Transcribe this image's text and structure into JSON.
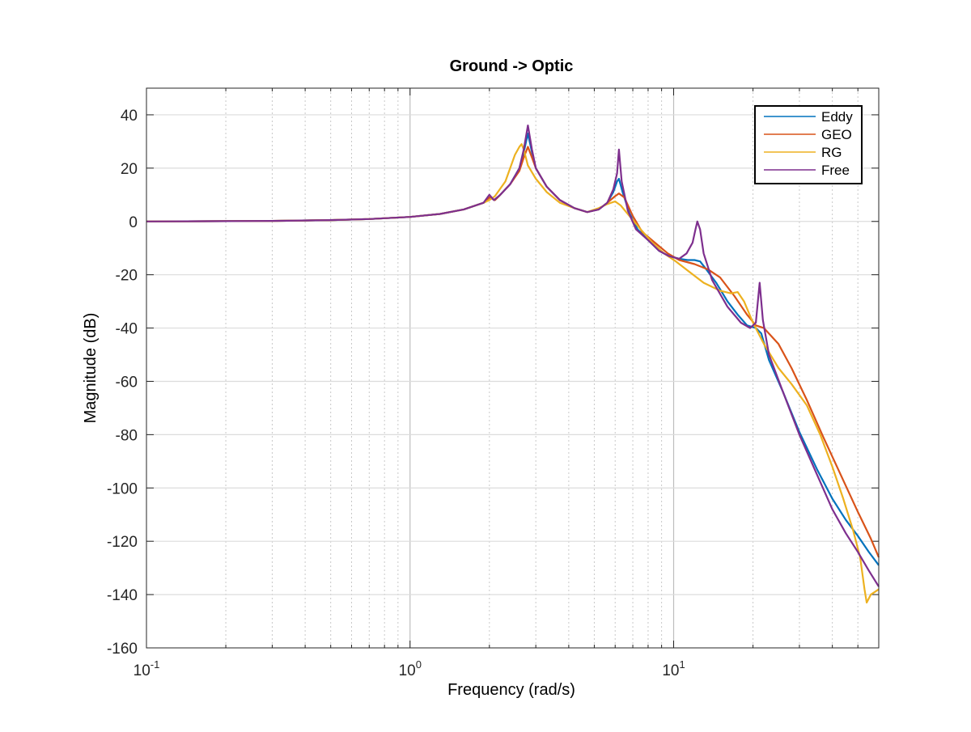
{
  "chart_data": {
    "type": "line",
    "title": "Ground -> Optic",
    "xlabel": "Frequency  (rad/s)",
    "ylabel": "Magnitude (dB)",
    "xscale": "log",
    "xlim": [
      0.1,
      60
    ],
    "ylim": [
      -160,
      50
    ],
    "grid": true,
    "legend_position": "top-right",
    "xticks": [
      {
        "value": 0.1,
        "base": "10",
        "exp": "-1"
      },
      {
        "value": 1,
        "base": "10",
        "exp": "0"
      },
      {
        "value": 10,
        "base": "10",
        "exp": "1"
      }
    ],
    "yticks": [
      40,
      20,
      0,
      -20,
      -40,
      -60,
      -80,
      -100,
      -120,
      -140,
      -160
    ],
    "yticklabels": [
      "40",
      "20",
      "0",
      "-20",
      "-40",
      "-60",
      "-80",
      "-100",
      "-120",
      "-140",
      "-160"
    ],
    "series": [
      {
        "name": "Eddy",
        "color": "#0072BD",
        "points": [
          [
            0.1,
            0
          ],
          [
            0.3,
            0.2
          ],
          [
            0.5,
            0.5
          ],
          [
            0.7,
            0.9
          ],
          [
            1.0,
            1.7
          ],
          [
            1.3,
            2.8
          ],
          [
            1.6,
            4.5
          ],
          [
            1.9,
            7
          ],
          [
            2.0,
            9
          ],
          [
            2.1,
            8
          ],
          [
            2.2,
            10
          ],
          [
            2.4,
            14
          ],
          [
            2.6,
            20
          ],
          [
            2.7,
            26
          ],
          [
            2.8,
            33
          ],
          [
            2.9,
            26
          ],
          [
            3.0,
            20
          ],
          [
            3.3,
            13
          ],
          [
            3.7,
            8
          ],
          [
            4.2,
            5
          ],
          [
            4.7,
            3.5
          ],
          [
            5.2,
            4.5
          ],
          [
            5.6,
            7
          ],
          [
            5.9,
            11
          ],
          [
            6.1,
            15
          ],
          [
            6.2,
            16
          ],
          [
            6.4,
            11
          ],
          [
            6.8,
            3
          ],
          [
            7.3,
            -3
          ],
          [
            8.0,
            -7
          ],
          [
            8.8,
            -11
          ],
          [
            9.6,
            -13
          ],
          [
            10.5,
            -14
          ],
          [
            11.3,
            -14.5
          ],
          [
            12.0,
            -14.5
          ],
          [
            12.6,
            -15
          ],
          [
            13.3,
            -18
          ],
          [
            14.5,
            -23
          ],
          [
            16,
            -30
          ],
          [
            17.5,
            -35
          ],
          [
            19,
            -39
          ],
          [
            20.5,
            -40
          ],
          [
            21.5,
            -42
          ],
          [
            23,
            -52
          ],
          [
            26,
            -64
          ],
          [
            30,
            -79
          ],
          [
            35,
            -93
          ],
          [
            40,
            -104
          ],
          [
            45,
            -112
          ],
          [
            50,
            -118
          ],
          [
            55,
            -124
          ],
          [
            60,
            -129
          ]
        ]
      },
      {
        "name": "GEO",
        "color": "#D95319",
        "points": [
          [
            0.1,
            0
          ],
          [
            0.3,
            0.2
          ],
          [
            0.5,
            0.5
          ],
          [
            0.7,
            0.9
          ],
          [
            1.0,
            1.7
          ],
          [
            1.3,
            2.8
          ],
          [
            1.6,
            4.5
          ],
          [
            1.9,
            7
          ],
          [
            2.0,
            9
          ],
          [
            2.1,
            8
          ],
          [
            2.2,
            10
          ],
          [
            2.4,
            14
          ],
          [
            2.6,
            19
          ],
          [
            2.7,
            24
          ],
          [
            2.8,
            28
          ],
          [
            2.9,
            24
          ],
          [
            3.0,
            20
          ],
          [
            3.3,
            13
          ],
          [
            3.7,
            8
          ],
          [
            4.2,
            5
          ],
          [
            4.7,
            3.5
          ],
          [
            5.2,
            4.5
          ],
          [
            5.6,
            7
          ],
          [
            6.0,
            9.5
          ],
          [
            6.2,
            10.5
          ],
          [
            6.5,
            9
          ],
          [
            7.0,
            2
          ],
          [
            7.6,
            -4
          ],
          [
            8.5,
            -8
          ],
          [
            9.5,
            -12
          ],
          [
            10.5,
            -14.5
          ],
          [
            12,
            -16
          ],
          [
            13.5,
            -18
          ],
          [
            15,
            -21
          ],
          [
            17,
            -28
          ],
          [
            19,
            -35
          ],
          [
            20.5,
            -39
          ],
          [
            22,
            -40
          ],
          [
            25,
            -46
          ],
          [
            28,
            -55
          ],
          [
            32,
            -67
          ],
          [
            37,
            -81
          ],
          [
            43,
            -95
          ],
          [
            50,
            -109
          ],
          [
            56,
            -119
          ],
          [
            60,
            -126
          ]
        ]
      },
      {
        "name": "RG",
        "color": "#EDB120",
        "points": [
          [
            0.1,
            0
          ],
          [
            0.3,
            0.2
          ],
          [
            0.5,
            0.5
          ],
          [
            0.7,
            0.9
          ],
          [
            1.0,
            1.7
          ],
          [
            1.3,
            2.8
          ],
          [
            1.6,
            4.5
          ],
          [
            1.9,
            7
          ],
          [
            2.0,
            8
          ],
          [
            2.1,
            9.5
          ],
          [
            2.3,
            15
          ],
          [
            2.5,
            25
          ],
          [
            2.6,
            28
          ],
          [
            2.65,
            29
          ],
          [
            2.7,
            27
          ],
          [
            2.8,
            21
          ],
          [
            3.0,
            16
          ],
          [
            3.3,
            11
          ],
          [
            3.7,
            7
          ],
          [
            4.2,
            5
          ],
          [
            4.7,
            3.5
          ],
          [
            5.2,
            5
          ],
          [
            5.6,
            6.5
          ],
          [
            6.0,
            7.5
          ],
          [
            6.3,
            6
          ],
          [
            6.8,
            2
          ],
          [
            7.5,
            -3
          ],
          [
            8.3,
            -8
          ],
          [
            9.2,
            -12
          ],
          [
            10.2,
            -15
          ],
          [
            11.5,
            -19
          ],
          [
            13,
            -23
          ],
          [
            15,
            -26
          ],
          [
            16.5,
            -27
          ],
          [
            17.5,
            -26.5
          ],
          [
            18.5,
            -30
          ],
          [
            20,
            -38
          ],
          [
            22,
            -46
          ],
          [
            25,
            -55
          ],
          [
            28,
            -61
          ],
          [
            32,
            -69
          ],
          [
            36,
            -80
          ],
          [
            40,
            -92
          ],
          [
            44,
            -104
          ],
          [
            48,
            -116
          ],
          [
            51,
            -126
          ],
          [
            53,
            -138
          ],
          [
            54,
            -143
          ],
          [
            56,
            -140
          ],
          [
            58,
            -139
          ],
          [
            60,
            -138
          ]
        ]
      },
      {
        "name": "Free",
        "color": "#7E2F8E",
        "points": [
          [
            0.1,
            0
          ],
          [
            0.3,
            0.2
          ],
          [
            0.5,
            0.5
          ],
          [
            0.7,
            0.9
          ],
          [
            1.0,
            1.7
          ],
          [
            1.3,
            2.8
          ],
          [
            1.6,
            4.5
          ],
          [
            1.9,
            7
          ],
          [
            2.0,
            10
          ],
          [
            2.08,
            8
          ],
          [
            2.2,
            10
          ],
          [
            2.4,
            14
          ],
          [
            2.6,
            20
          ],
          [
            2.7,
            27
          ],
          [
            2.8,
            36
          ],
          [
            2.9,
            27
          ],
          [
            3.0,
            20
          ],
          [
            3.3,
            13
          ],
          [
            3.7,
            8
          ],
          [
            4.2,
            5
          ],
          [
            4.7,
            3.5
          ],
          [
            5.2,
            4.5
          ],
          [
            5.6,
            7
          ],
          [
            5.9,
            12
          ],
          [
            6.1,
            18
          ],
          [
            6.2,
            27
          ],
          [
            6.35,
            15
          ],
          [
            6.7,
            4
          ],
          [
            7.2,
            -3
          ],
          [
            8.0,
            -7
          ],
          [
            8.8,
            -11
          ],
          [
            9.6,
            -13
          ],
          [
            10.5,
            -14
          ],
          [
            11.2,
            -12
          ],
          [
            11.8,
            -8
          ],
          [
            12.1,
            -3
          ],
          [
            12.3,
            0
          ],
          [
            12.6,
            -3
          ],
          [
            13.0,
            -12
          ],
          [
            14,
            -22
          ],
          [
            16,
            -32
          ],
          [
            18,
            -38
          ],
          [
            19.5,
            -40
          ],
          [
            20.5,
            -38
          ],
          [
            21.2,
            -23
          ],
          [
            21.8,
            -37
          ],
          [
            23,
            -50
          ],
          [
            26,
            -64
          ],
          [
            30,
            -80
          ],
          [
            35,
            -95
          ],
          [
            40,
            -108
          ],
          [
            45,
            -117
          ],
          [
            50,
            -124
          ],
          [
            55,
            -131
          ],
          [
            60,
            -137
          ]
        ]
      }
    ]
  }
}
